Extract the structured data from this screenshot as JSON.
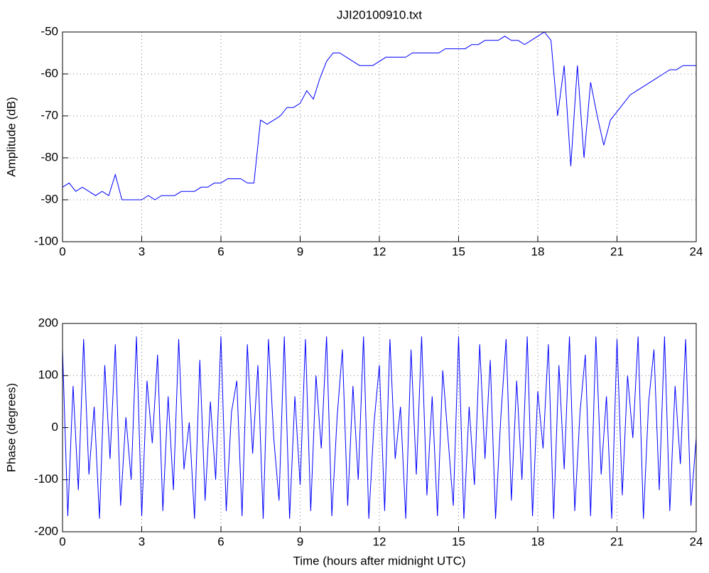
{
  "chart_data": [
    {
      "type": "line",
      "title": "JJI20100910.txt",
      "y_label": "Amplitude (dB)",
      "x": [
        0,
        0.25,
        0.5,
        0.75,
        1,
        1.25,
        1.5,
        1.75,
        2,
        2.25,
        2.5,
        2.75,
        3,
        3.25,
        3.5,
        3.75,
        4,
        4.25,
        4.5,
        4.75,
        5,
        5.25,
        5.5,
        5.75,
        6,
        6.25,
        6.5,
        6.75,
        7,
        7.25,
        7.5,
        7.75,
        8,
        8.25,
        8.5,
        8.75,
        9,
        9.25,
        9.5,
        9.75,
        10,
        10.25,
        10.5,
        10.75,
        11,
        11.25,
        11.5,
        11.75,
        12,
        12.25,
        12.5,
        12.75,
        13,
        13.25,
        13.5,
        13.75,
        14,
        14.25,
        14.5,
        14.75,
        15,
        15.25,
        15.5,
        15.75,
        16,
        16.25,
        16.5,
        16.75,
        17,
        17.25,
        17.5,
        17.75,
        18,
        18.25,
        18.5,
        18.75,
        19,
        19.25,
        19.5,
        19.75,
        20,
        20.25,
        20.5,
        20.75,
        21,
        21.25,
        21.5,
        21.75,
        22,
        22.25,
        22.5,
        22.75,
        23,
        23.25,
        23.5,
        23.75,
        24
      ],
      "series": [
        {
          "color": "#0000ff",
          "values": [
            -87,
            -86,
            -88,
            -87,
            -88,
            -89,
            -88,
            -89,
            -84,
            -90,
            -90,
            -90,
            -90,
            -89,
            -90,
            -89,
            -89,
            -89,
            -88,
            -88,
            -88,
            -87,
            -87,
            -86,
            -86,
            -85,
            -85,
            -85,
            -86,
            -86,
            -71,
            -72,
            -71,
            -70,
            -68,
            -68,
            -67,
            -64,
            -66,
            -61,
            -57,
            -55,
            -55,
            -56,
            -57,
            -58,
            -58,
            -58,
            -57,
            -56,
            -56,
            -56,
            -56,
            -55,
            -55,
            -55,
            -55,
            -55,
            -54,
            -54,
            -54,
            -54,
            -53,
            -53,
            -52,
            -52,
            -52,
            -51,
            -52,
            -52,
            -53,
            -52,
            -51,
            -50,
            -52,
            -70,
            -58,
            -82,
            -58,
            -80,
            -62,
            -70,
            -77,
            -71,
            -69,
            -67,
            -65,
            -64,
            -63,
            -62,
            -61,
            -60,
            -59,
            -59,
            -58,
            -58,
            -58
          ]
        }
      ],
      "xlim": [
        0,
        24
      ],
      "xticks": [
        0,
        3,
        6,
        9,
        12,
        15,
        18,
        21,
        24
      ],
      "ylim": [
        -100,
        -50
      ],
      "yticks": [
        -100,
        -90,
        -80,
        -70,
        -60,
        -50
      ],
      "grid": true
    },
    {
      "type": "line",
      "x_label": "Time (hours after midnight UTC)",
      "y_label": "Phase (degrees)",
      "x": [
        0,
        0.2,
        0.4,
        0.6,
        0.8,
        1,
        1.2,
        1.4,
        1.6,
        1.8,
        2,
        2.2,
        2.4,
        2.6,
        2.8,
        3,
        3.2,
        3.4,
        3.6,
        3.8,
        4,
        4.2,
        4.4,
        4.6,
        4.8,
        5,
        5.2,
        5.4,
        5.6,
        5.8,
        6,
        6.2,
        6.4,
        6.6,
        6.8,
        7,
        7.2,
        7.4,
        7.6,
        7.8,
        8,
        8.2,
        8.4,
        8.6,
        8.8,
        9,
        9.2,
        9.4,
        9.6,
        9.8,
        10,
        10.2,
        10.4,
        10.6,
        10.8,
        11,
        11.2,
        11.4,
        11.6,
        11.8,
        12,
        12.2,
        12.4,
        12.6,
        12.8,
        13,
        13.2,
        13.4,
        13.6,
        13.8,
        14,
        14.2,
        14.4,
        14.6,
        14.8,
        15,
        15.2,
        15.4,
        15.6,
        15.8,
        16,
        16.2,
        16.4,
        16.6,
        16.8,
        17,
        17.2,
        17.4,
        17.6,
        17.8,
        18,
        18.2,
        18.4,
        18.6,
        18.8,
        19,
        19.2,
        19.4,
        19.6,
        19.8,
        20,
        20.2,
        20.4,
        20.6,
        20.8,
        21,
        21.2,
        21.4,
        21.6,
        21.8,
        22,
        22.2,
        22.4,
        22.6,
        22.8,
        23,
        23.2,
        23.4,
        23.6,
        23.8,
        24
      ],
      "series": [
        {
          "color": "#0000ff",
          "values": [
            150,
            -170,
            80,
            -120,
            170,
            -90,
            40,
            -175,
            120,
            -60,
            160,
            -150,
            20,
            -100,
            175,
            -170,
            90,
            -30,
            140,
            -160,
            60,
            -120,
            170,
            -80,
            10,
            -175,
            130,
            -140,
            50,
            -100,
            175,
            -160,
            30,
            90,
            -170,
            160,
            -50,
            120,
            -175,
            170,
            -20,
            -140,
            175,
            -175,
            60,
            -110,
            170,
            -160,
            100,
            -40,
            175,
            -170,
            20,
            150,
            -150,
            80,
            -100,
            175,
            -175,
            10,
            120,
            -160,
            170,
            -60,
            40,
            -175,
            150,
            -90,
            175,
            -130,
            60,
            -170,
            110,
            -20,
            -150,
            175,
            -175,
            40,
            -110,
            160,
            -60,
            130,
            -175,
            20,
            170,
            -140,
            90,
            -100,
            175,
            -170,
            70,
            -40,
            160,
            -175,
            120,
            -80,
            175,
            -160,
            30,
            140,
            -170,
            175,
            -90,
            60,
            -175,
            170,
            -130,
            100,
            -20,
            175,
            -175,
            50,
            150,
            -120,
            175,
            -160,
            80,
            -70,
            170,
            -150,
            -20
          ]
        }
      ],
      "xlim": [
        0,
        24
      ],
      "xticks": [
        0,
        3,
        6,
        9,
        12,
        15,
        18,
        21,
        24
      ],
      "ylim": [
        -200,
        200
      ],
      "yticks": [
        -200,
        -100,
        0,
        100,
        200
      ],
      "grid": true
    }
  ]
}
